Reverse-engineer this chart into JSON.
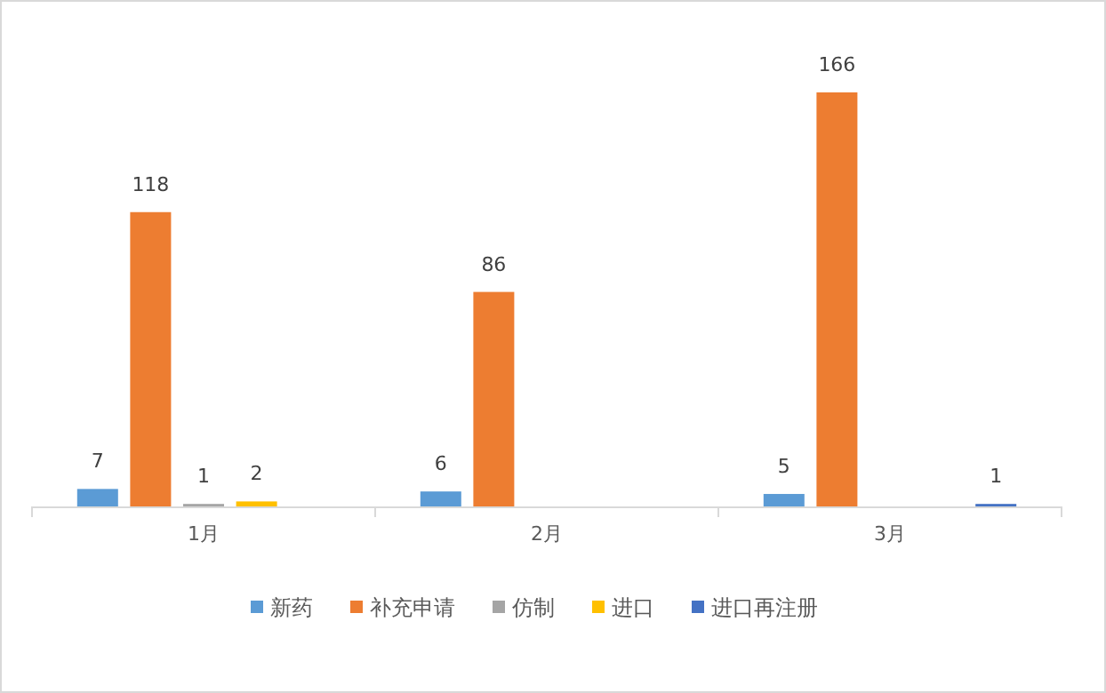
{
  "chart_data": {
    "type": "bar",
    "categories": [
      "1月",
      "2月",
      "3月"
    ],
    "data_labels": true,
    "legend": "bottom",
    "series": [
      {
        "name": "新药",
        "color": "#5b9bd5",
        "values": [
          7,
          6,
          5
        ]
      },
      {
        "name": "补充申请",
        "color": "#ed7d31",
        "values": [
          118,
          86,
          166
        ]
      },
      {
        "name": "仿制",
        "color": "#a5a5a5",
        "values": [
          1,
          null,
          null
        ]
      },
      {
        "name": "进口",
        "color": "#ffc000",
        "values": [
          2,
          null,
          null
        ]
      },
      {
        "name": "进口再注册",
        "color": "#4472c4",
        "values": [
          null,
          null,
          1
        ]
      }
    ]
  }
}
